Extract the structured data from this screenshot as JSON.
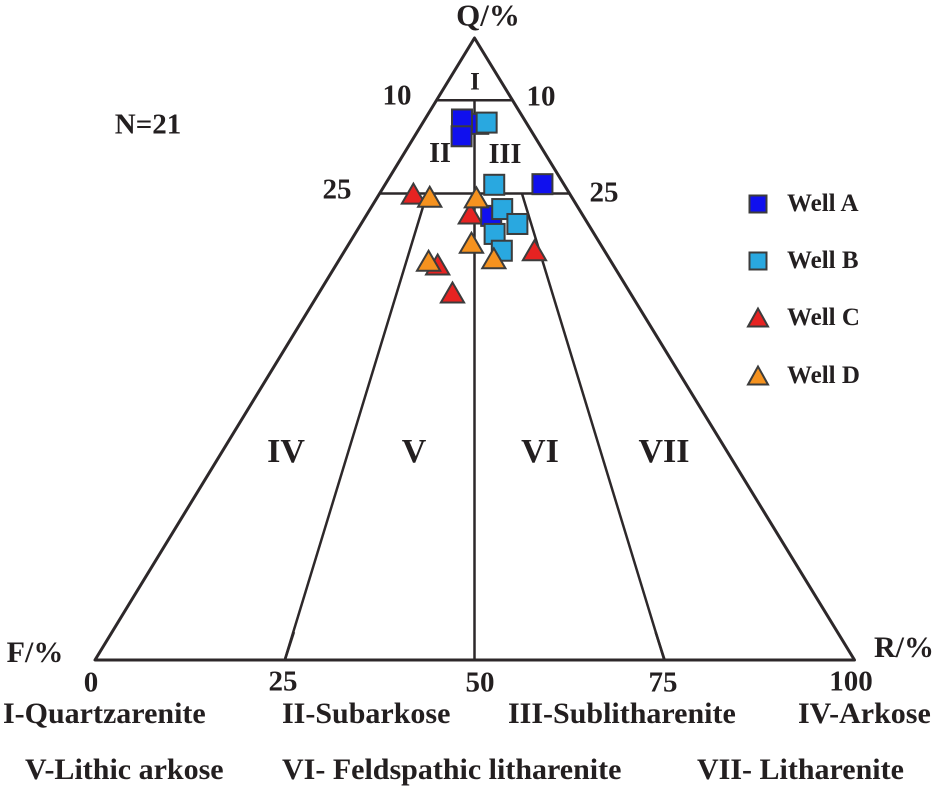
{
  "legend": {
    "position": "right-inside",
    "items": [
      {
        "label": "Well A",
        "marker": "square",
        "color": "#1010ee"
      },
      {
        "label": "Well B",
        "marker": "square",
        "color": "#29a8e0"
      },
      {
        "label": "Well C",
        "marker": "triangle",
        "color": "#e62322"
      },
      {
        "label": "Well D",
        "marker": "triangle",
        "color": "#f5921f"
      }
    ]
  },
  "chart_data": {
    "type": "scatter",
    "subtype": "ternary",
    "title": "",
    "sample_count_label": "N=21",
    "apex_labels": {
      "top": "Q/%",
      "bottom_left": "F/%",
      "bottom_right": "R/%"
    },
    "base_axis_tick_labels": [
      "0",
      "25",
      "50",
      "75",
      "100"
    ],
    "base_tick_marks": [
      25,
      75
    ],
    "gridlines": [
      {
        "q": 90,
        "label": "10"
      },
      {
        "q": 75,
        "label": "25"
      }
    ],
    "dividers": [
      {
        "name": "II-III and V-VI boundary (F=R)",
        "from": {
          "q": 90,
          "f": 5,
          "r": 5
        },
        "to": {
          "q": 0,
          "f": 50,
          "r": 50
        }
      },
      {
        "name": "IV-V boundary (F:R=3:1)",
        "from": {
          "q": 75,
          "f": 18.75,
          "r": 6.25
        },
        "to": {
          "q": 0,
          "f": 75,
          "r": 25
        }
      },
      {
        "name": "VI-VII boundary (F:R=1:3)",
        "from": {
          "q": 75,
          "f": 6.25,
          "r": 18.75
        },
        "to": {
          "q": 0,
          "f": 25,
          "r": 75
        }
      }
    ],
    "regions": [
      {
        "numeral": "I",
        "name": "Quartzarenite"
      },
      {
        "numeral": "II",
        "name": "Subarkose"
      },
      {
        "numeral": "III",
        "name": "Sublitharenite"
      },
      {
        "numeral": "IV",
        "name": "Arkose"
      },
      {
        "numeral": "V",
        "name": "Lithic arkose"
      },
      {
        "numeral": "VI",
        "name": "Feldspathic litharenite"
      },
      {
        "numeral": "VII",
        "name": "Litharenite"
      }
    ],
    "classification_captions": {
      "row1": [
        "I-Quartzarenite",
        "II-Subarkose",
        "III-Sublitharenite",
        "IV-Arkose"
      ],
      "row2": [
        "V-Lithic arkose",
        "VI- Feldspathic litharenite",
        "VII- Litharenite"
      ]
    },
    "points": [
      {
        "well": "Well A",
        "q": 86.2,
        "f": 6.4,
        "r": 7.4
      },
      {
        "well": "Well B",
        "q": 86.4,
        "f": 5.2,
        "r": 8.4
      },
      {
        "well": "Well A",
        "q": 86.9,
        "f": 8.2,
        "r": 4.9
      },
      {
        "well": "Well A",
        "q": 84.2,
        "f": 9.6,
        "r": 6.2
      },
      {
        "well": "Well B",
        "q": 76.4,
        "f": 9.2,
        "r": 14.4
      },
      {
        "well": "Well A",
        "q": 76.5,
        "f": 2.8,
        "r": 20.7
      },
      {
        "well": "Well C",
        "q": 74.9,
        "f": 20.6,
        "r": 4.5
      },
      {
        "well": "Well D",
        "q": 74.4,
        "f": 18.7,
        "r": 6.9
      },
      {
        "well": "Well C",
        "q": 71.7,
        "f": 14.7,
        "r": 13.6
      },
      {
        "well": "Well A",
        "q": 71.4,
        "f": 12.1,
        "r": 16.5
      },
      {
        "well": "Well B",
        "q": 72.5,
        "f": 10.1,
        "r": 17.4
      },
      {
        "well": "Well B",
        "q": 70.1,
        "f": 9.3,
        "r": 20.6
      },
      {
        "well": "Well B",
        "q": 68.5,
        "f": 13.1,
        "r": 18.4
      },
      {
        "well": "Well D",
        "q": 74.3,
        "f": 12.6,
        "r": 13.1
      },
      {
        "well": "Well B",
        "q": 65.8,
        "f": 13.5,
        "r": 20.7
      },
      {
        "well": "Well D",
        "q": 64.5,
        "f": 15.2,
        "r": 20.3
      },
      {
        "well": "Well C",
        "q": 65.8,
        "f": 9.2,
        "r": 25.0
      },
      {
        "well": "Well C",
        "q": 63.5,
        "f": 23.1,
        "r": 13.4
      },
      {
        "well": "Well D",
        "q": 64.1,
        "f": 24.0,
        "r": 11.9
      },
      {
        "well": "Well C",
        "q": 59.0,
        "f": 23.4,
        "r": 17.6
      },
      {
        "well": "Well D",
        "q": 67.0,
        "f": 16.9,
        "r": 16.1
      }
    ],
    "colors": {
      "line": "#2d282a",
      "text": "#231f20",
      "marker_outline": "#3c3c3c"
    }
  }
}
